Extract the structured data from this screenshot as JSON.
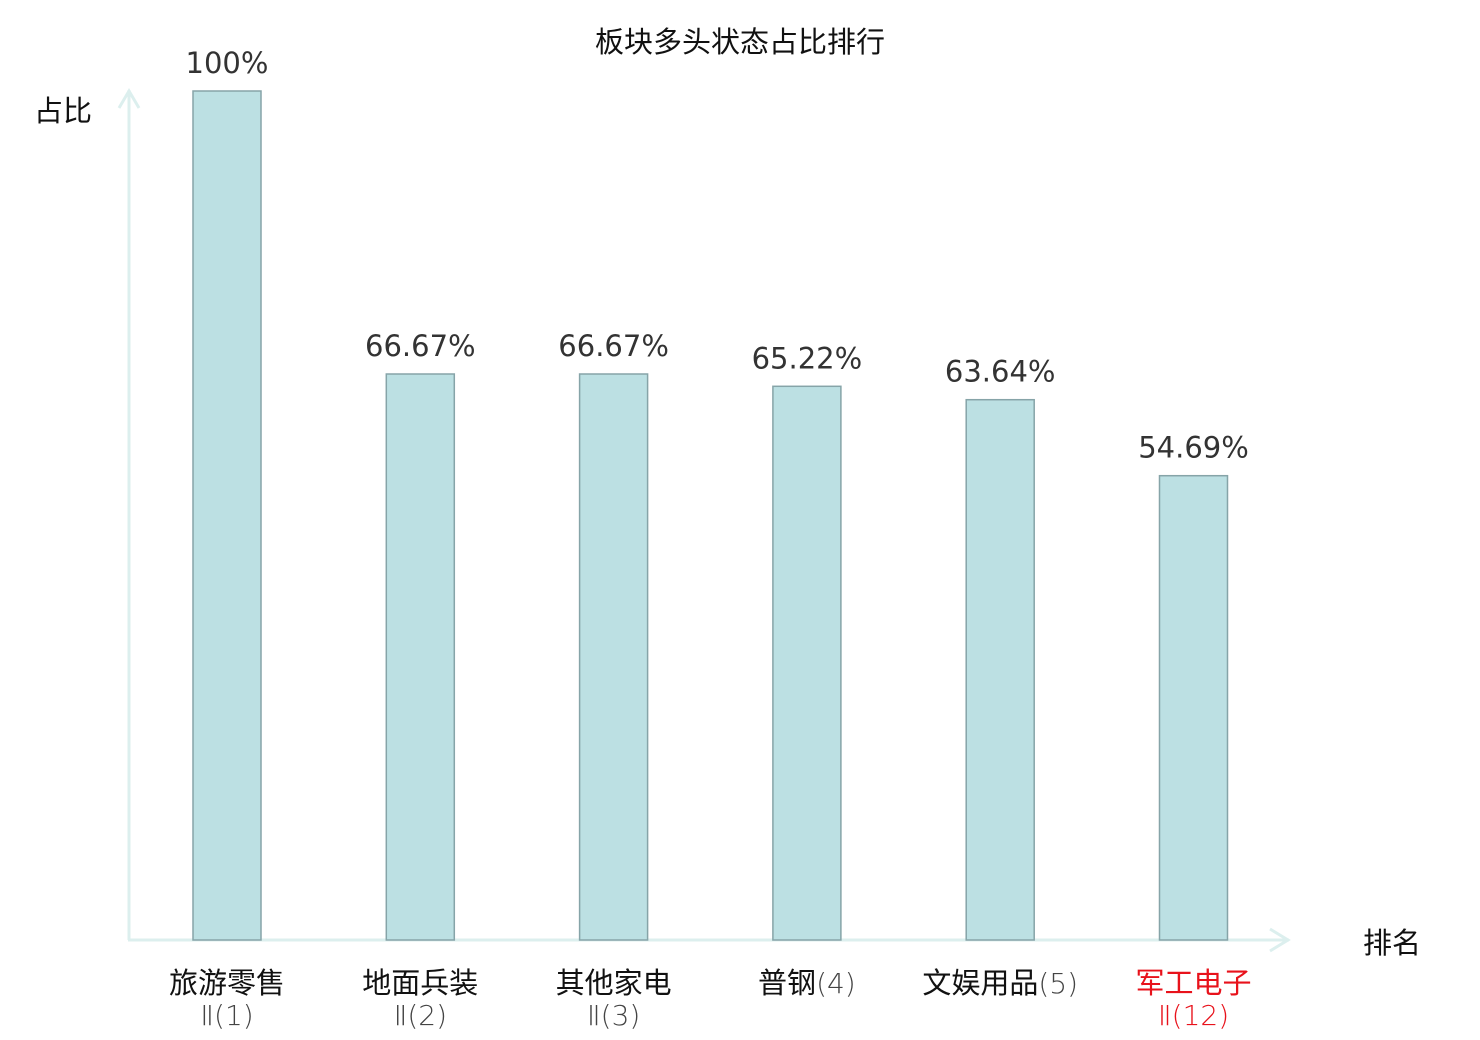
{
  "chart_data": {
    "type": "bar",
    "title": "板块多头状态占比排行",
    "ylabel": "占比",
    "xlabel": "排名",
    "ylim": [
      0,
      100
    ],
    "grid": false,
    "legend": "none",
    "categories": [
      {
        "name": "旅游零售",
        "rank": "Ⅱ(1)",
        "highlight": false
      },
      {
        "name": "地面兵装",
        "rank": "Ⅱ(2)",
        "highlight": false
      },
      {
        "name": "其他家电",
        "rank": "Ⅱ(3)",
        "highlight": false
      },
      {
        "name": "普钢",
        "rank": "(4)",
        "highlight": false
      },
      {
        "name": "文娱用品",
        "rank": "(5)",
        "highlight": false
      },
      {
        "name": "军工电子",
        "rank": "Ⅱ(12)",
        "highlight": true
      }
    ],
    "values": [
      100,
      66.67,
      66.67,
      65.22,
      63.64,
      54.69
    ],
    "value_labels": [
      "100%",
      "66.67%",
      "66.67%",
      "65.22%",
      "63.64%",
      "54.69%"
    ]
  },
  "colors": {
    "bar_fill": "#bce0e3",
    "bar_stroke": "#86a4a8",
    "axis": "#dcefee",
    "text": "#111111",
    "value_text": "#333333",
    "rank_text": "#444444",
    "highlight": "#e8121b"
  }
}
